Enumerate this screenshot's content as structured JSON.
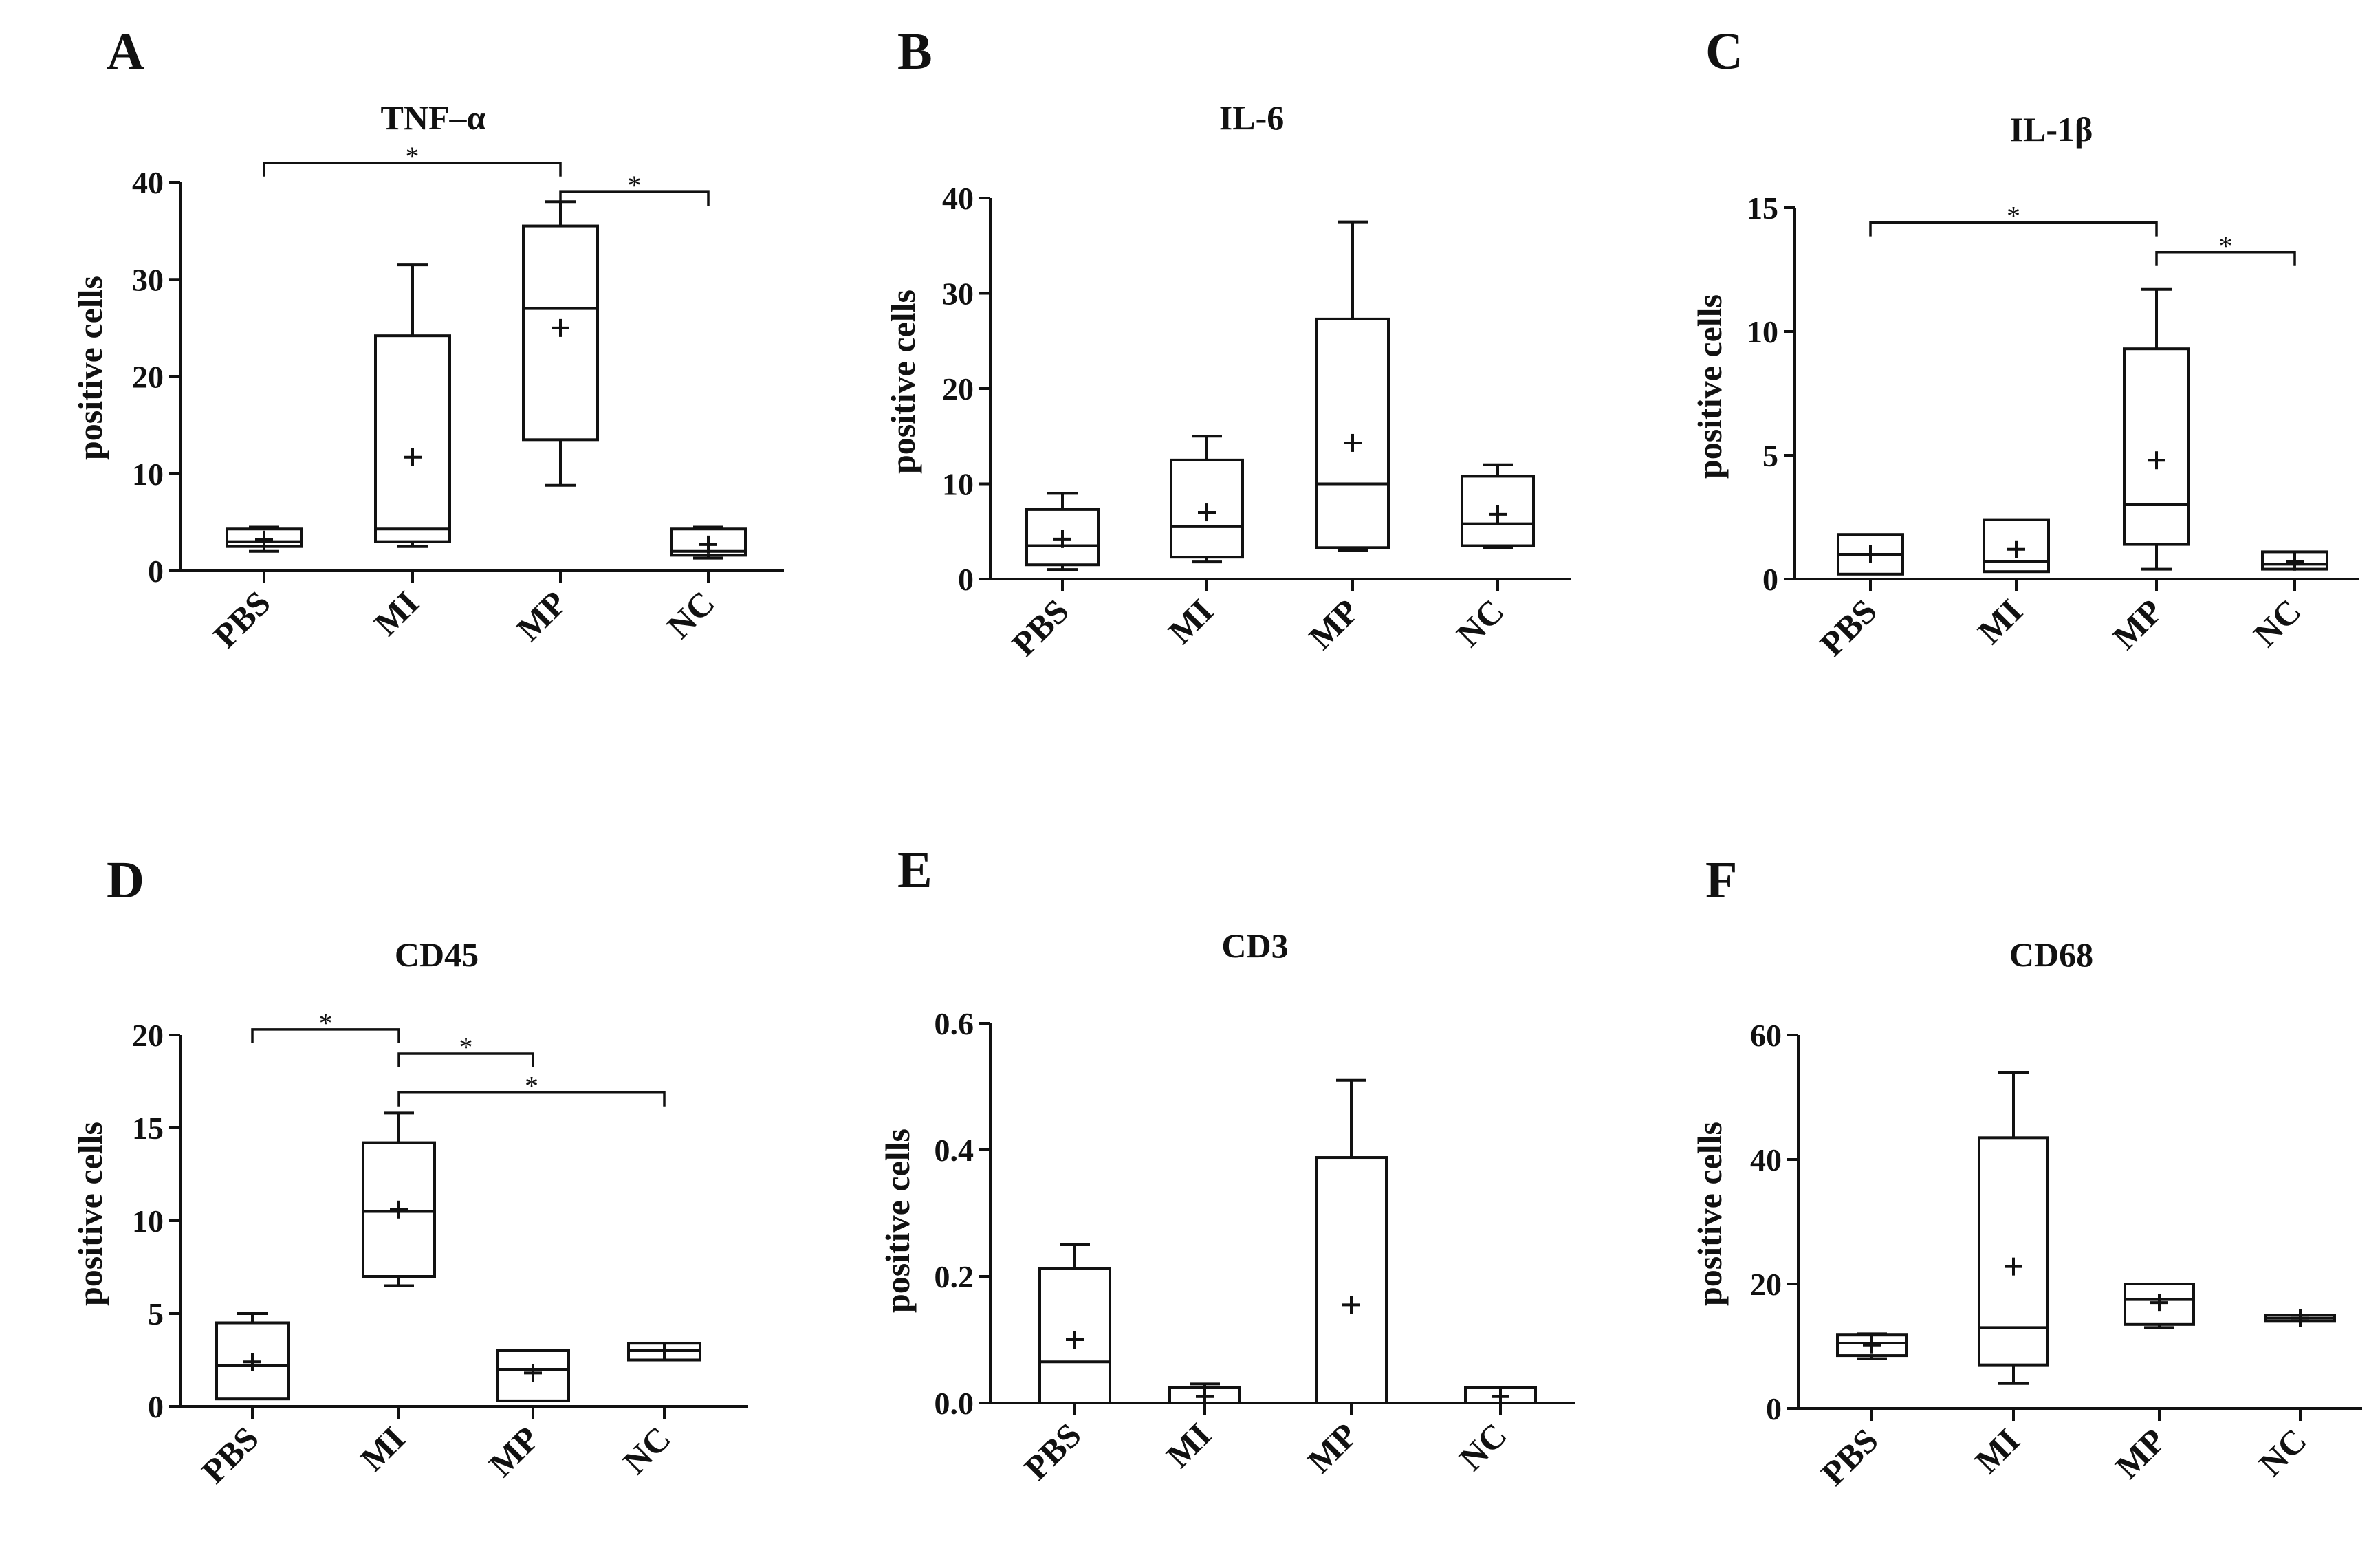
{
  "chart_data": [
    {
      "panel": "A",
      "type": "box",
      "title": "TNF–α",
      "ylabel": "positive cells",
      "ylim": [
        0,
        40
      ],
      "yticks": [
        0,
        10,
        20,
        30,
        40
      ],
      "categories": [
        "PBS",
        "MI",
        "MP",
        "NC"
      ],
      "boxes": [
        {
          "min": 2.0,
          "q1": 2.5,
          "median": 3.0,
          "q3": 4.3,
          "max": 4.5,
          "mean": 3.2
        },
        {
          "min": 2.5,
          "q1": 3.0,
          "median": 4.3,
          "q3": 24.2,
          "max": 31.5,
          "mean": 11.7
        },
        {
          "min": 8.8,
          "q1": 13.5,
          "median": 27.0,
          "q3": 35.5,
          "max": 38.0,
          "mean": 25.0
        },
        {
          "min": 1.3,
          "q1": 1.6,
          "median": 2.0,
          "q3": 4.3,
          "max": 4.5,
          "mean": 2.7
        }
      ],
      "significance": [
        {
          "from": 0,
          "to": 2,
          "y": 42.0,
          "label": "*"
        },
        {
          "from": 2,
          "to": 3,
          "y": 39.0,
          "label": "*"
        }
      ]
    },
    {
      "panel": "B",
      "type": "box",
      "title": "IL-6",
      "ylabel": "positive cells",
      "ylim": [
        0,
        40
      ],
      "yticks": [
        0,
        10,
        20,
        30,
        40
      ],
      "categories": [
        "PBS",
        "MI",
        "MP",
        "NC"
      ],
      "boxes": [
        {
          "min": 1.0,
          "q1": 1.5,
          "median": 3.5,
          "q3": 7.3,
          "max": 9.0,
          "mean": 4.2
        },
        {
          "min": 1.8,
          "q1": 2.3,
          "median": 5.5,
          "q3": 12.5,
          "max": 15.0,
          "mean": 7.0
        },
        {
          "min": 3.0,
          "q1": 3.3,
          "median": 10.0,
          "q3": 27.3,
          "max": 37.5,
          "mean": 14.3
        },
        {
          "min": 3.3,
          "q1": 3.5,
          "median": 5.8,
          "q3": 10.8,
          "max": 12.0,
          "mean": 6.8
        }
      ],
      "significance": []
    },
    {
      "panel": "C",
      "type": "box",
      "title": "IL-1β",
      "ylabel": "positive cells",
      "ylim": [
        0,
        15
      ],
      "yticks": [
        0,
        5,
        10,
        15
      ],
      "categories": [
        "PBS",
        "MI",
        "MP",
        "NC"
      ],
      "boxes": [
        {
          "min": 0.2,
          "q1": 0.2,
          "median": 1.0,
          "q3": 1.8,
          "max": 1.8,
          "mean": 1.0
        },
        {
          "min": 0.3,
          "q1": 0.3,
          "median": 0.7,
          "q3": 2.4,
          "max": 2.4,
          "mean": 1.2
        },
        {
          "min": 0.4,
          "q1": 1.4,
          "median": 3.0,
          "q3": 9.3,
          "max": 11.7,
          "mean": 4.8
        },
        {
          "min": 0.4,
          "q1": 0.4,
          "median": 0.6,
          "q3": 1.1,
          "max": 1.1,
          "mean": 0.7
        }
      ],
      "significance": [
        {
          "from": 0,
          "to": 2,
          "y": 14.4,
          "label": "*"
        },
        {
          "from": 2,
          "to": 3,
          "y": 13.2,
          "label": "*"
        }
      ]
    },
    {
      "panel": "D",
      "type": "box",
      "title": "CD45",
      "ylabel": "positive cells",
      "ylim": [
        0,
        20
      ],
      "yticks": [
        0,
        5,
        10,
        15,
        20
      ],
      "categories": [
        "PBS",
        "MI",
        "MP",
        "NC"
      ],
      "boxes": [
        {
          "min": 0.4,
          "q1": 0.4,
          "median": 2.2,
          "q3": 4.5,
          "max": 5.0,
          "mean": 2.4
        },
        {
          "min": 6.5,
          "q1": 7.0,
          "median": 10.5,
          "q3": 14.2,
          "max": 15.8,
          "mean": 10.6
        },
        {
          "min": 0.3,
          "q1": 0.3,
          "median": 2.0,
          "q3": 3.0,
          "max": 3.0,
          "mean": 1.8
        },
        {
          "min": 2.5,
          "q1": 2.5,
          "median": 3.0,
          "q3": 3.4,
          "max": 3.4,
          "mean": 3.0
        }
      ],
      "significance": [
        {
          "from": 0,
          "to": 1,
          "y": 20.3,
          "label": "*"
        },
        {
          "from": 1,
          "to": 2,
          "y": 19.0,
          "label": "*"
        },
        {
          "from": 1,
          "to": 3,
          "y": 16.9,
          "label": "*"
        }
      ]
    },
    {
      "panel": "E",
      "type": "box",
      "title": "CD3",
      "ylabel": "positive cells",
      "ylim": [
        0,
        0.6
      ],
      "yticks": [
        0.0,
        0.2,
        0.4,
        0.6
      ],
      "categories": [
        "PBS",
        "MI",
        "MP",
        "NC"
      ],
      "boxes": [
        {
          "min": 0.0,
          "q1": 0.0,
          "median": 0.065,
          "q3": 0.213,
          "max": 0.25,
          "mean": 0.1
        },
        {
          "min": 0.0,
          "q1": 0.0,
          "median": 0.0,
          "q3": 0.025,
          "max": 0.03,
          "mean": 0.01
        },
        {
          "min": 0.0,
          "q1": 0.0,
          "median": 0.0,
          "q3": 0.388,
          "max": 0.51,
          "mean": 0.155
        },
        {
          "min": 0.0,
          "q1": 0.0,
          "median": 0.0,
          "q3": 0.024,
          "max": 0.025,
          "mean": 0.01
        }
      ],
      "significance": []
    },
    {
      "panel": "F",
      "type": "box",
      "title": "CD68",
      "ylabel": "positive cells",
      "ylim": [
        0,
        60
      ],
      "yticks": [
        0,
        20,
        40,
        60
      ],
      "categories": [
        "PBS",
        "MI",
        "MP",
        "NC"
      ],
      "boxes": [
        {
          "min": 8.0,
          "q1": 8.5,
          "median": 10.5,
          "q3": 11.8,
          "max": 12.0,
          "mean": 10.2
        },
        {
          "min": 4.0,
          "q1": 7.0,
          "median": 13.0,
          "q3": 43.5,
          "max": 54.0,
          "mean": 22.8
        },
        {
          "min": 13.0,
          "q1": 13.5,
          "median": 17.5,
          "q3": 20.0,
          "max": 20.0,
          "mean": 17.0
        },
        {
          "min": 14.0,
          "q1": 14.0,
          "median": 14.5,
          "q3": 15.0,
          "max": 15.0,
          "mean": 14.5
        }
      ],
      "significance": []
    }
  ]
}
